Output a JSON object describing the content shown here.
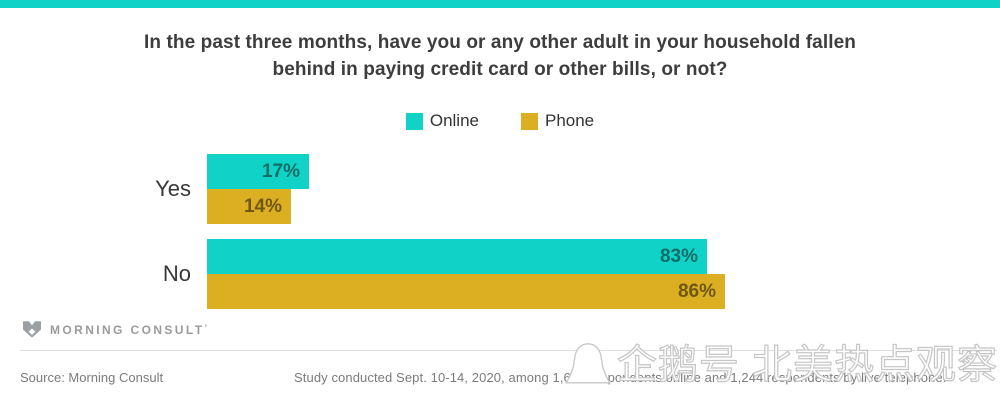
{
  "accent": {
    "teal": "#10d2c6",
    "gold": "#dcaf23"
  },
  "title": "In the past three months, have you or any other adult in your household fallen behind in paying credit card or other bills, or not?",
  "chart_data": {
    "type": "bar",
    "orientation": "horizontal",
    "categories": [
      "Yes",
      "No"
    ],
    "series": [
      {
        "name": "Online",
        "color": "#10d2c6",
        "label_color": "#0f6e68",
        "values": [
          17,
          83
        ]
      },
      {
        "name": "Phone",
        "color": "#dcaf23",
        "label_color": "#6e5812",
        "values": [
          14,
          86
        ]
      }
    ],
    "value_suffix": "%",
    "xlim": [
      0,
      100
    ],
    "legend_position": "top-center",
    "grid": false
  },
  "branding": {
    "logo_text": "MORNING CONSULT",
    "trademark": "’"
  },
  "footer": {
    "source": "Source: Morning Consult",
    "note": "Study conducted Sept. 10-14, 2020, among 1,698 respondents online and 1,244 respondents by live telephone."
  },
  "watermark": {
    "text": "企鹅号 北美热点观察"
  }
}
